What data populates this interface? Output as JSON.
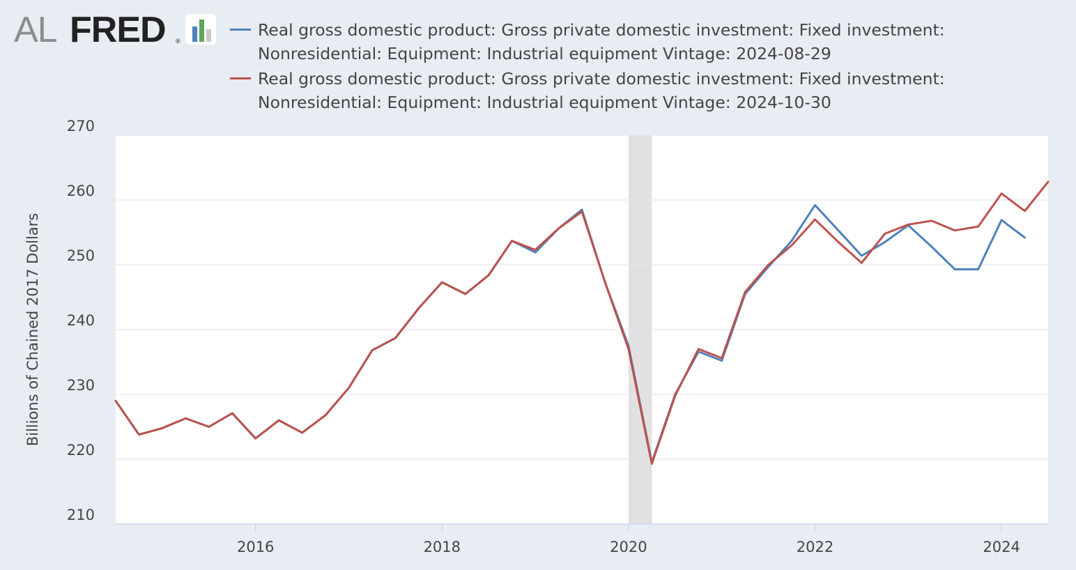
{
  "logo": {
    "text_al": "AL",
    "text_fred": "FRED",
    "reg": "®",
    "icon": "bar-chart-icon"
  },
  "colors": {
    "series_a": "#4e81bb",
    "series_b": "#bd514d",
    "gridline": "#e3e7ee",
    "recession": "#e1e1e1",
    "plot_bg": "#ffffff",
    "page_bg": "#e8ecf3"
  },
  "chart_data": {
    "type": "line",
    "title": "",
    "xlabel": "",
    "ylabel": "Billions of Chained 2017 Dollars",
    "ylim": [
      210,
      270
    ],
    "xlim": [
      2014.5,
      2024.5
    ],
    "yticks": [
      "210",
      "220",
      "230",
      "240",
      "250",
      "260",
      "270"
    ],
    "xticks": [
      "2016",
      "2018",
      "2020",
      "2022",
      "2024"
    ],
    "recession": {
      "start": 2020.0,
      "end": 2020.25
    },
    "legend_position": "top",
    "series": [
      {
        "name": "Real gross domestic product: Gross private domestic investment: Fixed investment:",
        "name_line2": "Nonresidential: Equipment: Industrial equipment Vintage: 2024-08-29",
        "color": "#4e81bb",
        "x": [
          2014.5,
          2014.75,
          2015.0,
          2015.25,
          2015.5,
          2015.75,
          2016.0,
          2016.25,
          2016.5,
          2016.75,
          2017.0,
          2017.25,
          2017.5,
          2017.75,
          2018.0,
          2018.25,
          2018.5,
          2018.75,
          2019.0,
          2019.25,
          2019.5,
          2019.75,
          2020.0,
          2020.25,
          2020.5,
          2020.75,
          2021.0,
          2021.25,
          2021.5,
          2021.75,
          2022.0,
          2022.25,
          2022.5,
          2022.75,
          2023.0,
          2023.25,
          2023.5,
          2023.75,
          2024.0,
          2024.25
        ],
        "values": [
          229.0,
          223.8,
          224.8,
          226.3,
          225.0,
          227.1,
          223.2,
          226.0,
          224.1,
          226.8,
          231.0,
          236.8,
          238.7,
          243.3,
          247.3,
          245.5,
          248.4,
          253.7,
          251.9,
          255.6,
          258.5,
          247.2,
          237.5,
          219.5,
          230.0,
          236.6,
          235.2,
          245.5,
          249.7,
          253.7,
          259.2,
          255.3,
          251.4,
          253.5,
          256.1,
          252.8,
          249.3,
          249.3,
          256.9,
          254.2
        ]
      },
      {
        "name": "Real gross domestic product: Gross private domestic investment: Fixed investment:",
        "name_line2": "Nonresidential: Equipment: Industrial equipment Vintage: 2024-10-30",
        "color": "#bd514d",
        "x": [
          2014.5,
          2014.75,
          2015.0,
          2015.25,
          2015.5,
          2015.75,
          2016.0,
          2016.25,
          2016.5,
          2016.75,
          2017.0,
          2017.25,
          2017.5,
          2017.75,
          2018.0,
          2018.25,
          2018.5,
          2018.75,
          2019.0,
          2019.25,
          2019.5,
          2019.75,
          2020.0,
          2020.25,
          2020.5,
          2020.75,
          2021.0,
          2021.25,
          2021.5,
          2021.75,
          2022.0,
          2022.25,
          2022.5,
          2022.75,
          2023.0,
          2023.25,
          2023.5,
          2023.75,
          2024.0,
          2024.25,
          2024.5
        ],
        "values": [
          229.0,
          223.8,
          224.8,
          226.3,
          225.0,
          227.1,
          223.2,
          226.0,
          224.1,
          226.8,
          231.0,
          236.8,
          238.7,
          243.3,
          247.3,
          245.5,
          248.4,
          253.7,
          252.3,
          255.6,
          258.2,
          247.2,
          237.0,
          219.3,
          229.8,
          237.0,
          235.6,
          245.8,
          250.0,
          253.0,
          257.0,
          253.5,
          250.3,
          254.8,
          256.2,
          256.8,
          255.3,
          255.9,
          261.0,
          258.3,
          262.8
        ]
      }
    ]
  }
}
